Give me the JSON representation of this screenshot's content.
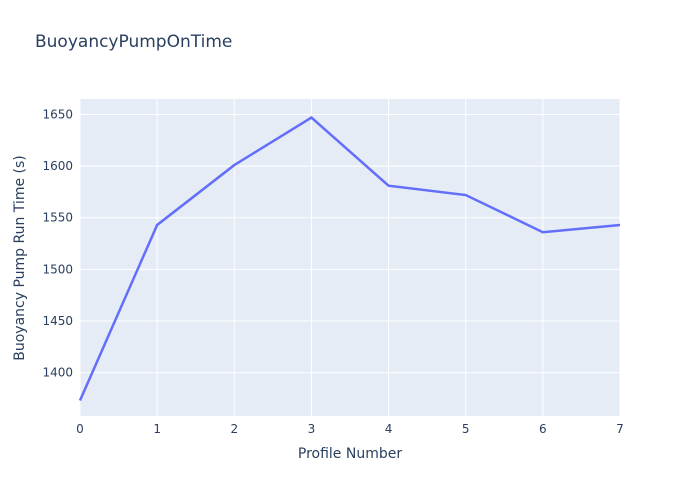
{
  "colors": {
    "paper_bg": "#ffffff",
    "plot_bg": "#e5ecf6",
    "grid": "#ffffff",
    "text": "#2a3f5f",
    "line": "#636efa"
  },
  "chart_data": {
    "type": "line",
    "title": "BuoyancyPumpOnTime",
    "xlabel": "Profile Number",
    "ylabel": "Buoyancy Pump Run Time (s)",
    "x": [
      0,
      1,
      2,
      3,
      4,
      5,
      6,
      7
    ],
    "y": [
      1373,
      1543,
      1601,
      1647,
      1581,
      1572,
      1536,
      1543
    ],
    "xticks": [
      0,
      1,
      2,
      3,
      4,
      5,
      6,
      7
    ],
    "yticks": [
      1400,
      1450,
      1500,
      1550,
      1600,
      1650
    ],
    "xlim": [
      0,
      7
    ],
    "ylim": [
      1358,
      1665
    ],
    "grid": true,
    "legend": false,
    "markers": false
  }
}
